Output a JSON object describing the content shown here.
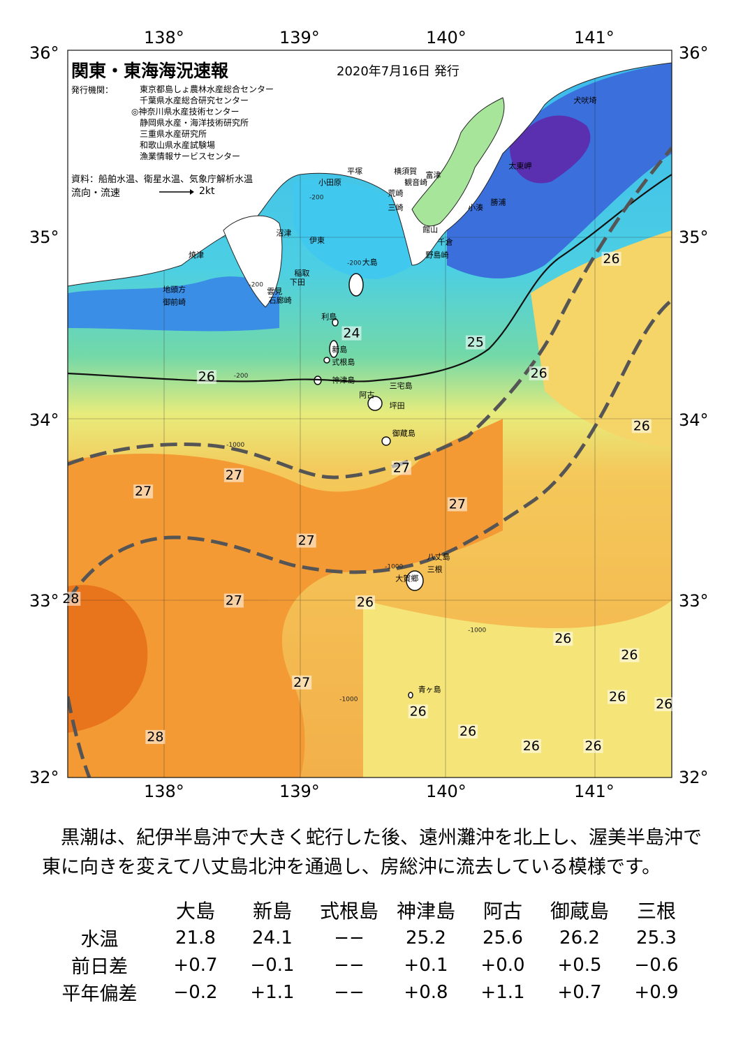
{
  "header": {
    "title": "関東・東海海況速報",
    "issue_date": "2020年7月16日 発行"
  },
  "publisher": {
    "label": "発行機関：",
    "orgs": [
      "東京都島しょ農林水産総合センター",
      "千葉県水産総合研究センター",
      "◎神奈川県水産技術センター",
      "静岡県水産・海洋技術研究所",
      "三重県水産研究所",
      "和歌山県水産試験場",
      "漁業情報サービスセンター"
    ],
    "source": "資料：船舶水温、衛星水温、気象庁解析水温",
    "flow_label": "流向・流速",
    "flow_scale": "2kt"
  },
  "axes": {
    "lon_ticks": [
      "138°",
      "139°",
      "140°",
      "141°"
    ],
    "lat_ticks": [
      "36°",
      "35°",
      "34°",
      "33°",
      "32°"
    ],
    "lon_range": [
      137.5,
      141.5
    ],
    "lat_range": [
      32,
      36
    ]
  },
  "place_names": [
    {
      "name": "犬吠埼",
      "lon": 140.85,
      "lat": 35.71
    },
    {
      "name": "太東岬",
      "lon": 140.42,
      "lat": 35.35
    },
    {
      "name": "勝浦",
      "lon": 140.3,
      "lat": 35.15
    },
    {
      "name": "小湊",
      "lon": 140.15,
      "lat": 35.12
    },
    {
      "name": "富津",
      "lon": 139.87,
      "lat": 35.3
    },
    {
      "name": "観音崎",
      "lon": 139.73,
      "lat": 35.26
    },
    {
      "name": "横須賀",
      "lon": 139.66,
      "lat": 35.32
    },
    {
      "name": "平塚",
      "lon": 139.35,
      "lat": 35.32
    },
    {
      "name": "小田原",
      "lon": 139.16,
      "lat": 35.26
    },
    {
      "name": "荒崎",
      "lon": 139.62,
      "lat": 35.2
    },
    {
      "name": "三崎",
      "lon": 139.62,
      "lat": 35.12
    },
    {
      "name": "館山",
      "lon": 139.85,
      "lat": 35.0
    },
    {
      "name": "千倉",
      "lon": 139.95,
      "lat": 34.93
    },
    {
      "name": "野島崎",
      "lon": 139.87,
      "lat": 34.86
    },
    {
      "name": "沼津",
      "lon": 138.88,
      "lat": 34.98
    },
    {
      "name": "伊東",
      "lon": 139.1,
      "lat": 34.94
    },
    {
      "name": "焼津",
      "lon": 138.3,
      "lat": 34.86
    },
    {
      "name": "大島",
      "lon": 139.45,
      "lat": 34.82
    },
    {
      "name": "稲取",
      "lon": 139.0,
      "lat": 34.76
    },
    {
      "name": "下田",
      "lon": 138.97,
      "lat": 34.71
    },
    {
      "name": "雲見",
      "lon": 138.82,
      "lat": 34.66
    },
    {
      "name": "石廊崎",
      "lon": 138.83,
      "lat": 34.61
    },
    {
      "name": "地頭方",
      "lon": 138.13,
      "lat": 34.67
    },
    {
      "name": "御前崎",
      "lon": 138.13,
      "lat": 34.6
    },
    {
      "name": "利島",
      "lon": 139.18,
      "lat": 34.52
    },
    {
      "name": "新島",
      "lon": 139.25,
      "lat": 34.34
    },
    {
      "name": "式根島",
      "lon": 139.25,
      "lat": 34.27
    },
    {
      "name": "神津島",
      "lon": 139.25,
      "lat": 34.17
    },
    {
      "name": "三宅島",
      "lon": 139.63,
      "lat": 34.14
    },
    {
      "name": "阿古",
      "lon": 139.43,
      "lat": 34.09
    },
    {
      "name": "坪田",
      "lon": 139.63,
      "lat": 34.03
    },
    {
      "name": "御蔵島",
      "lon": 139.65,
      "lat": 33.88
    },
    {
      "name": "八丈島",
      "lon": 139.88,
      "lat": 33.2
    },
    {
      "name": "三根",
      "lon": 139.88,
      "lat": 33.13
    },
    {
      "name": "大賀郷",
      "lon": 139.67,
      "lat": 33.08
    },
    {
      "name": "青ヶ島",
      "lon": 139.82,
      "lat": 32.47
    }
  ],
  "isotherm_labels": [
    {
      "t": "24",
      "lon": 139.38,
      "lat": 34.42
    },
    {
      "t": "25",
      "lon": 140.2,
      "lat": 34.37
    },
    {
      "t": "26",
      "lon": 138.42,
      "lat": 34.18
    },
    {
      "t": "26",
      "lon": 140.62,
      "lat": 34.2
    },
    {
      "t": "26",
      "lon": 141.1,
      "lat": 34.83
    },
    {
      "t": "26",
      "lon": 141.3,
      "lat": 33.91
    },
    {
      "t": "27",
      "lon": 138.0,
      "lat": 33.55
    },
    {
      "t": "27",
      "lon": 138.6,
      "lat": 33.64
    },
    {
      "t": "27",
      "lon": 139.71,
      "lat": 33.68
    },
    {
      "t": "27",
      "lon": 140.08,
      "lat": 33.48
    },
    {
      "t": "27",
      "lon": 139.08,
      "lat": 33.28
    },
    {
      "t": "27",
      "lon": 138.6,
      "lat": 32.95
    },
    {
      "t": "27",
      "lon": 139.05,
      "lat": 32.5
    },
    {
      "t": "26",
      "lon": 139.47,
      "lat": 32.94
    },
    {
      "t": "26",
      "lon": 140.78,
      "lat": 32.74
    },
    {
      "t": "26",
      "lon": 141.22,
      "lat": 32.65
    },
    {
      "t": "26",
      "lon": 141.14,
      "lat": 32.42
    },
    {
      "t": "26",
      "lon": 141.45,
      "lat": 32.38
    },
    {
      "t": "26",
      "lon": 139.82,
      "lat": 32.34
    },
    {
      "t": "26",
      "lon": 140.15,
      "lat": 32.23
    },
    {
      "t": "26",
      "lon": 140.57,
      "lat": 32.15
    },
    {
      "t": "26",
      "lon": 140.98,
      "lat": 32.15
    },
    {
      "t": "28",
      "lon": 138.08,
      "lat": 32.2
    },
    {
      "t": "28",
      "lon": 137.52,
      "lat": 32.96
    }
  ],
  "depth_labels": [
    "-200",
    "-1000"
  ],
  "summary": "黒潮は、紀伊半島沖で大きく蛇行した後、遠州灘沖を北上し、渥美半島沖で東に向きを変えて八丈島北沖を通過し、房総沖に流去している模様です。",
  "stations": {
    "columns": [
      "大島",
      "新島",
      "式根島",
      "神津島",
      "阿古",
      "御蔵島",
      "三根"
    ],
    "rows": [
      {
        "label": "水温",
        "values": [
          "21.8",
          "24.1",
          "−−",
          "25.2",
          "25.6",
          "26.2",
          "25.3"
        ]
      },
      {
        "label": "前日差",
        "values": [
          "+0.7",
          "−0.1",
          "−−",
          "+0.1",
          "+0.0",
          "+0.5",
          "−0.6"
        ]
      },
      {
        "label": "平年偏差",
        "values": [
          "−0.2",
          "+1.1",
          "−−",
          "+0.8",
          "+1.1",
          "+0.7",
          "+0.9"
        ]
      }
    ]
  },
  "colors": {
    "warm": "#f08a24",
    "mid": "#f6b24a",
    "cool": "#f6e27a",
    "green": "#7fd37a",
    "cyan": "#3fd0e0",
    "blue": "#3a7de0",
    "deep": "#5a2fb0",
    "kuroshio": "#555555"
  }
}
